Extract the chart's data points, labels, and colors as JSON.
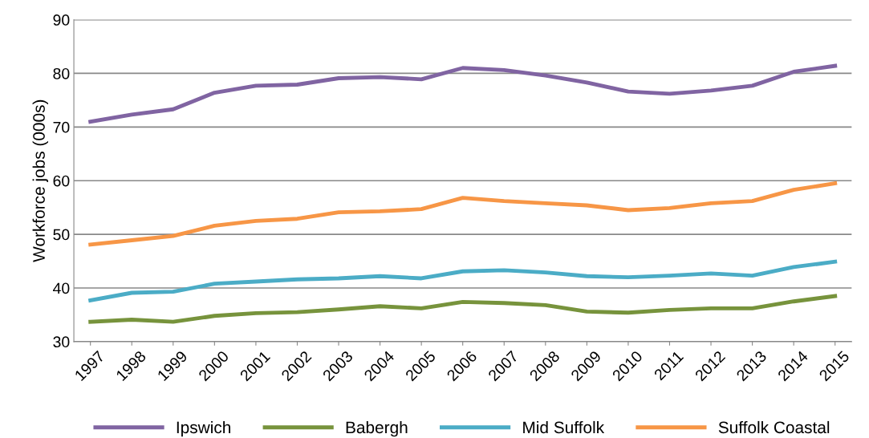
{
  "chart_data": {
    "type": "line",
    "ylabel": "Workforce jobs (000s)",
    "categories": [
      "1997",
      "1998",
      "1999",
      "2000",
      "2001",
      "2002",
      "2003",
      "2004",
      "2005",
      "2006",
      "2007",
      "2008",
      "2009",
      "2010",
      "2011",
      "2012",
      "2013",
      "2014",
      "2015"
    ],
    "series": [
      {
        "name": "Ipswich",
        "color": "#8064a2",
        "values": [
          71.0,
          72.3,
          73.3,
          76.4,
          77.7,
          77.9,
          79.1,
          79.3,
          78.9,
          81.0,
          80.6,
          79.6,
          78.3,
          76.6,
          76.2,
          76.8,
          77.7,
          80.3,
          81.4
        ]
      },
      {
        "name": "Babergh",
        "color": "#77933c",
        "values": [
          33.7,
          34.1,
          33.7,
          34.8,
          35.3,
          35.5,
          36.0,
          36.6,
          36.2,
          37.4,
          37.2,
          36.8,
          35.6,
          35.4,
          35.9,
          36.2,
          36.2,
          37.5,
          38.5
        ]
      },
      {
        "name": "Mid Suffolk",
        "color": "#4bacc6",
        "values": [
          37.7,
          39.1,
          39.3,
          40.8,
          41.2,
          41.6,
          41.8,
          42.2,
          41.8,
          43.1,
          43.3,
          42.9,
          42.2,
          42.0,
          42.3,
          42.7,
          42.3,
          43.9,
          44.9
        ]
      },
      {
        "name": "Suffolk Coastal",
        "color": "#f79646",
        "values": [
          48.1,
          48.9,
          49.7,
          51.6,
          52.5,
          52.9,
          54.1,
          54.3,
          54.7,
          56.8,
          56.2,
          55.8,
          55.4,
          54.5,
          54.9,
          55.8,
          56.2,
          58.3,
          59.5
        ]
      }
    ],
    "ylim": [
      30,
      90
    ],
    "yticks": [
      30,
      40,
      50,
      60,
      70,
      80,
      90
    ],
    "grid": "y",
    "legend": "bottom",
    "marker": "none",
    "line_style": "solid"
  }
}
